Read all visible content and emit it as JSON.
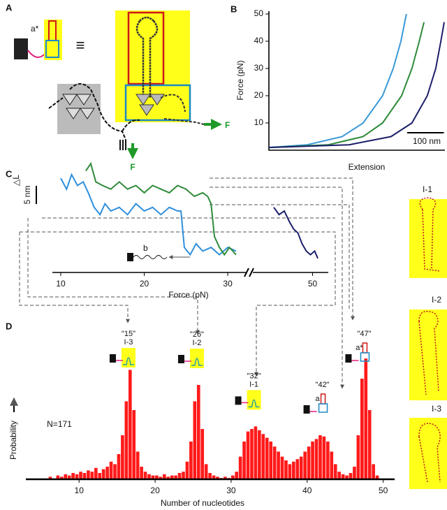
{
  "panel_labels": [
    "A",
    "B",
    "C",
    "D"
  ],
  "diagram_a": {
    "strand_label": "a*",
    "equiv": "≡",
    "force_right": "F",
    "force_down": "F"
  },
  "side_structures": [
    "I-1",
    "I-2",
    "I-3"
  ],
  "chart_data": [
    {
      "type": "line",
      "y_label": "Force (pN)",
      "x_label": "Extension",
      "xlim": [
        0,
        480
      ],
      "ylim": [
        0,
        50
      ],
      "yticks": [
        10,
        20,
        30,
        40,
        50
      ],
      "scale_bar": {
        "value": 100,
        "label": "100 nm"
      },
      "series": [
        {
          "color": "#3a9ad9",
          "x": [
            0,
            105,
            200,
            257,
            310,
            339,
            360,
            375
          ],
          "values": [
            1,
            2,
            5,
            10,
            20,
            30,
            40,
            50
          ]
        },
        {
          "color": "#2e8b3a",
          "x": [
            0,
            162,
            257,
            310,
            362,
            390,
            410,
            423
          ],
          "values": [
            1,
            2,
            5,
            10,
            20,
            30,
            40,
            47
          ]
        },
        {
          "color": "#1c1f6b",
          "x": [
            0,
            219,
            333,
            390,
            432,
            455,
            469,
            478
          ],
          "values": [
            1,
            2,
            5,
            10,
            20,
            30,
            40,
            47
          ]
        }
      ]
    },
    {
      "type": "line",
      "x_label": "Force (pN)",
      "y_label": "△L",
      "xlim": [
        9,
        51.5
      ],
      "xbreak": [
        32,
        44.5
      ],
      "xticks": [
        10,
        20,
        30,
        50
      ],
      "ylim": [
        -1,
        27
      ],
      "scale_bar": {
        "value": 5,
        "label": "5 nm"
      },
      "construct_label": "b",
      "series": [
        {
          "color": "#2f8fdc",
          "x": [
            10,
            10.7,
            11.3,
            12,
            12.7,
            13.3,
            14,
            14.7,
            15.3,
            16,
            17,
            18,
            19,
            20,
            21,
            22,
            23,
            24,
            24.4,
            24.8,
            25.5,
            26.2,
            27,
            28,
            29,
            30,
            31
          ],
          "values": [
            22,
            19,
            23,
            20,
            21,
            18,
            14,
            12,
            15,
            13,
            14,
            12,
            15,
            13,
            14,
            12,
            14,
            13,
            13,
            3,
            1,
            4,
            2,
            3,
            1,
            3,
            2
          ]
        },
        {
          "color": "#2e8b3a",
          "x": [
            13,
            13.6,
            14.2,
            15,
            16,
            17,
            18,
            19,
            20,
            21,
            22,
            23,
            24,
            25,
            26,
            27,
            27.6,
            28,
            28.4,
            29,
            29.6,
            30.2,
            31
          ],
          "values": [
            24,
            26,
            21,
            20,
            19,
            21,
            19,
            20,
            18,
            20,
            19,
            18,
            20,
            19,
            17,
            18,
            17,
            15,
            6,
            3,
            1,
            3,
            1
          ]
        },
        {
          "color": "#1c1f6b",
          "x": [
            46.3,
            46.8,
            47.3,
            47.8,
            48.2,
            48.6,
            49,
            49.4,
            49.8,
            50.2,
            50.5
          ],
          "values": [
            14,
            12,
            13,
            10,
            8,
            7,
            4,
            2,
            1,
            2,
            0
          ]
        }
      ]
    },
    {
      "type": "histogram",
      "x_label": "Number of nucleotides",
      "y_label": "Probability",
      "n_label": "N=171",
      "color": "#ff1a1a",
      "xlim": [
        3,
        51.5
      ],
      "xticks": [
        10,
        20,
        30,
        40,
        50
      ],
      "ylim": [
        0,
        100
      ],
      "bins": [
        6,
        6.5,
        7,
        7.5,
        8,
        8.5,
        9,
        9.5,
        10,
        10.5,
        11,
        11.5,
        12,
        12.5,
        13,
        13.5,
        14,
        14.5,
        15,
        15.5,
        16,
        16.5,
        17,
        17.5,
        18,
        18.5,
        19,
        19.5,
        20,
        20.5,
        21,
        21.5,
        22,
        22.5,
        23,
        23.5,
        24,
        24.5,
        25,
        25.5,
        26,
        26.5,
        27,
        27.5,
        28,
        28.5,
        29,
        29.5,
        30,
        30.5,
        31,
        31.5,
        32,
        32.5,
        33,
        33.5,
        34,
        34.5,
        35,
        35.5,
        36,
        36.5,
        37,
        37.5,
        38,
        38.5,
        39,
        39.5,
        40,
        40.5,
        41,
        41.5,
        42,
        42.5,
        43,
        43.5,
        44,
        44.5,
        45,
        45.5,
        46,
        46.5,
        47,
        47.5,
        48,
        48.5,
        49,
        49.5
      ],
      "values": [
        2,
        0,
        3,
        2,
        4,
        3,
        5,
        4,
        6,
        5,
        7,
        6,
        9,
        5,
        8,
        10,
        14,
        12,
        20,
        35,
        62,
        87,
        55,
        22,
        10,
        6,
        4,
        3,
        3,
        2,
        4,
        2,
        3,
        3,
        5,
        6,
        14,
        30,
        62,
        75,
        40,
        12,
        5,
        3,
        2,
        1,
        2,
        1,
        3,
        6,
        18,
        30,
        38,
        40,
        42,
        39,
        36,
        33,
        30,
        26,
        22,
        18,
        15,
        12,
        14,
        16,
        18,
        22,
        26,
        30,
        32,
        35,
        34,
        30,
        22,
        12,
        6,
        4,
        3,
        5,
        10,
        35,
        80,
        96,
        55,
        12,
        3
      ],
      "annotations": [
        {
          "label": "\"15\"",
          "state": "I-3",
          "x": 16.5
        },
        {
          "label": "\"26\"",
          "state": "I-2",
          "x": 25.5
        },
        {
          "label": "\"32\"",
          "state": "I-1",
          "x": 33
        },
        {
          "label": "\"42\"",
          "strand": "a",
          "x": 42
        },
        {
          "label": "\"47\"",
          "strand": "a*",
          "x": 47.5
        }
      ]
    }
  ]
}
